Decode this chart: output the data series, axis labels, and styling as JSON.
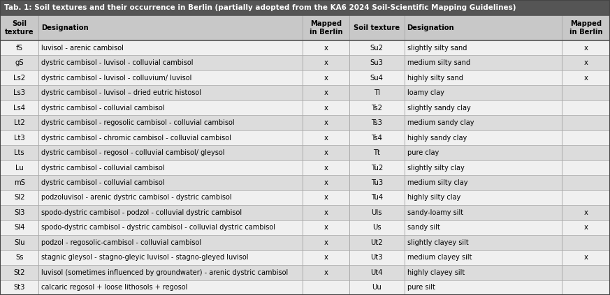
{
  "title": "Tab. 1: Soil textures and their occurrence in Berlin (partially adopted from the KA6 2024 Soil-Scientific Mapping Guidelines)",
  "title_bg": "#555555",
  "title_color": "#ffffff",
  "header_bg": "#c8c8c8",
  "header_color": "#000000",
  "row_bg_light": "#f0f0f0",
  "row_bg_dark": "#dcdcdc",
  "border_color": "#aaaaaa",
  "col_headers": [
    "Soil\ntexture",
    "Designation",
    "Mapped\nin Berlin",
    "Soil texture",
    "Designation",
    "Mapped\nin Berlin"
  ],
  "left_data": [
    [
      "fS",
      "luvisol - arenic cambisol",
      "x"
    ],
    [
      "gS",
      "dystric cambisol - luvisol - colluvial cambisol",
      "x"
    ],
    [
      "Ls2",
      "dystric cambisol - luvisol - colluvium/ luvisol",
      "x"
    ],
    [
      "Ls3",
      "dystric cambisol - luvisol – dried eutric histosol",
      "x"
    ],
    [
      "Ls4",
      "dystric cambisol - colluvial cambisol",
      "x"
    ],
    [
      "Lt2",
      "dystric cambisol - regosolic cambisol - colluvial cambisol",
      "x"
    ],
    [
      "Lt3",
      "dystric cambisol - chromic cambisol - colluvial cambisol",
      "x"
    ],
    [
      "Lts",
      "dystric cambisol - regosol - colluvial cambisol/ gleysol",
      "x"
    ],
    [
      "Lu",
      "dystric cambisol - colluvial cambisol",
      "x"
    ],
    [
      "mS",
      "dystric cambisol - colluvial cambisol",
      "x"
    ],
    [
      "Sl2",
      "podzoluvisol - arenic dystric cambisol - dystric cambisol",
      "x"
    ],
    [
      "Sl3",
      "spodo-dystric cambisol - podzol - colluvial dystric cambisol",
      "x"
    ],
    [
      "Sl4",
      "spodo-dystric cambisol - dystric cambisol - colluvial dystric cambisol",
      "x"
    ],
    [
      "Slu",
      "podzol - regosolic-cambisol - colluvial cambisol",
      "x"
    ],
    [
      "Ss",
      "stagnic gleysol - stagno-gleyic luvisol - stagno-gleyed luvisol",
      "x"
    ],
    [
      "St2",
      "luvisol (sometimes influenced by groundwater) - arenic dystric cambisol",
      "x"
    ],
    [
      "St3",
      "calcaric regosol + loose lithosols + regosol",
      ""
    ]
  ],
  "right_data": [
    [
      "Su2",
      "slightly silty sand",
      "x"
    ],
    [
      "Su3",
      "medium silty sand",
      "x"
    ],
    [
      "Su4",
      "highly silty sand",
      "x"
    ],
    [
      "Tl",
      "loamy clay",
      ""
    ],
    [
      "Ts2",
      "slightly sandy clay",
      ""
    ],
    [
      "Ts3",
      "medium sandy clay",
      ""
    ],
    [
      "Ts4",
      "highly sandy clay",
      ""
    ],
    [
      "Tt",
      "pure clay",
      ""
    ],
    [
      "Tu2",
      "slightly silty clay",
      ""
    ],
    [
      "Tu3",
      "medium silty clay",
      ""
    ],
    [
      "Tu4",
      "highly silty clay",
      ""
    ],
    [
      "Uls",
      "sandy-loamy silt",
      "x"
    ],
    [
      "Us",
      "sandy silt",
      "x"
    ],
    [
      "Ut2",
      "slightly clayey silt",
      ""
    ],
    [
      "Ut3",
      "medium clayey silt",
      "x"
    ],
    [
      "Ut4",
      "highly clayey silt",
      ""
    ],
    [
      "Uu",
      "pure silt",
      ""
    ]
  ]
}
